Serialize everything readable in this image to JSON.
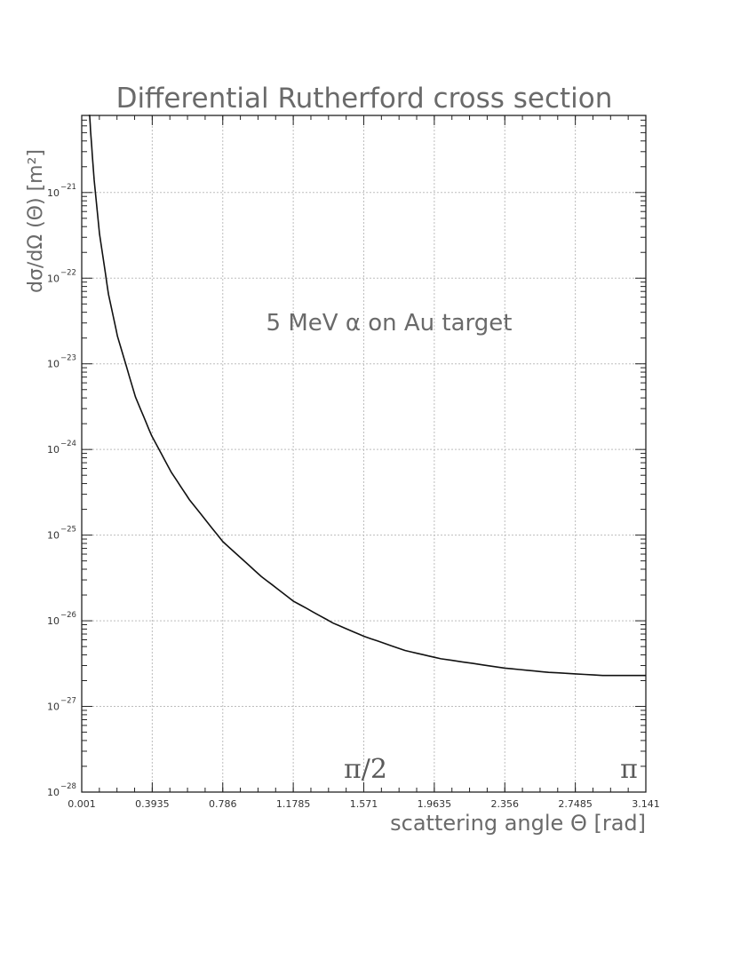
{
  "chart_data": {
    "type": "line",
    "title": "Differential Rutherford cross section",
    "xlabel": "scattering angle Θ [rad]",
    "ylabel": "dσ/dΩ (Θ)  [m²]",
    "annotation": "5 MeV α on Au target",
    "markers": [
      {
        "label": "π/2",
        "x": 1.571
      },
      {
        "label": "π",
        "x": 3.141
      }
    ],
    "xlim": [
      0.001,
      3.141
    ],
    "ylim_log10": [
      -28,
      -20.1
    ],
    "yscale": "log",
    "grid": true,
    "x_ticks": [
      "0.001",
      "0.3935",
      "0.786",
      "1.1785",
      "1.571",
      "1.9635",
      "2.356",
      "2.7485",
      "3.141"
    ],
    "y_ticks": [
      {
        "base": "10",
        "exp": "−21"
      },
      {
        "base": "10",
        "exp": "−22"
      },
      {
        "base": "10",
        "exp": "−23"
      },
      {
        "base": "10",
        "exp": "−24"
      },
      {
        "base": "10",
        "exp": "−25"
      },
      {
        "base": "10",
        "exp": "−26"
      },
      {
        "base": "10",
        "exp": "−27"
      },
      {
        "base": "10",
        "exp": "−28"
      }
    ],
    "series": [
      {
        "x": [
          0.04,
          0.05,
          0.07,
          0.1,
          0.15,
          0.2,
          0.3,
          0.39,
          0.5,
          0.6,
          0.786,
          1.0,
          1.1785,
          1.4,
          1.571,
          1.8,
          2.0,
          2.356,
          2.6,
          2.9,
          3.141
        ],
        "y": [
          1.3e-20,
          5.3e-21,
          1.4e-21,
          3.3e-22,
          6.5e-23,
          2.1e-23,
          4.1e-24,
          1.45e-24,
          5.4e-25,
          2.6e-25,
          8.4e-26,
          3.3e-26,
          1.7e-26,
          9.4e-27,
          6.6e-27,
          4.5e-27,
          3.6e-27,
          2.8e-27,
          2.5e-27,
          2.3e-27,
          2.3e-27
        ]
      }
    ]
  }
}
